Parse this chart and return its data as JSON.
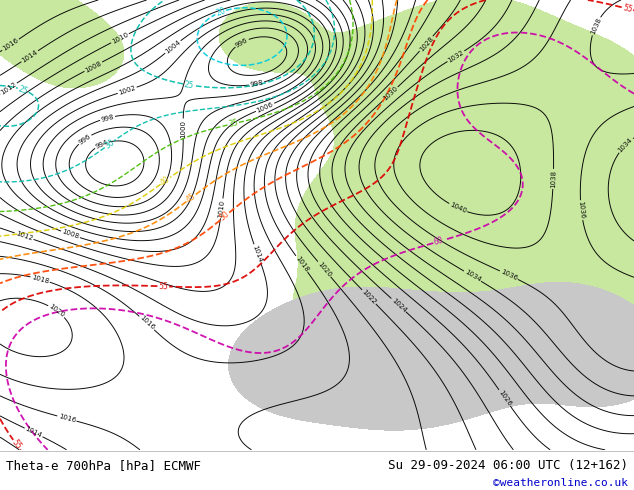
{
  "title_left": "Theta-e 700hPa [hPa] ECMWF",
  "title_right": "Su 29-09-2024 06:00 UTC (12+162)",
  "copyright": "©weatheronline.co.uk",
  "figsize": [
    6.34,
    4.9
  ],
  "dpi": 100,
  "title_fontsize": 9,
  "copyright_color": "#0000cc",
  "copyright_fontsize": 8,
  "map_bg": "#f0f0f0",
  "land_green_color": "#c8e8a0",
  "land_grey_color": "#c8c8c8",
  "sea_color": "#d8d8d8",
  "pressure_color": "black",
  "pressure_lw": 0.7,
  "pressure_label_fontsize": 5,
  "theta_colors": {
    "cyan": "#00ccdd",
    "teal": "#00bbaa",
    "green": "#44bb00",
    "yellow_green": "#99cc00",
    "yellow": "#ddcc00",
    "orange": "#ff8800",
    "red_orange": "#ff4400",
    "red": "#dd0000",
    "dark_red": "#aa0000",
    "magenta": "#cc00aa"
  },
  "theta_lw": 1.1
}
